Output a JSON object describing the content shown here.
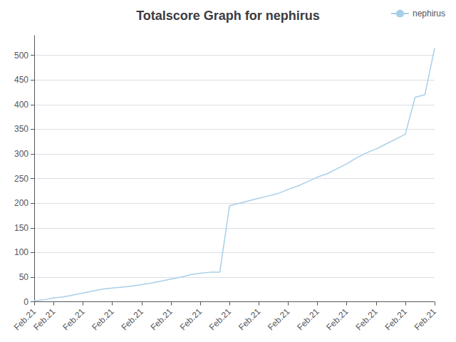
{
  "chart_data": {
    "type": "line",
    "title": "Totalscore Graph for nephirus",
    "x": [
      0,
      1,
      2,
      3,
      4,
      5,
      6,
      7,
      8,
      9,
      10,
      11,
      12,
      13,
      14,
      15,
      16,
      17,
      18,
      19,
      20,
      21,
      22,
      23,
      24,
      25,
      26,
      27,
      28,
      29,
      30,
      31,
      32,
      33,
      34,
      35,
      36,
      37,
      38,
      39,
      40,
      41
    ],
    "series": [
      {
        "name": "nephirus",
        "color": "#a8cfe8",
        "values": [
          2,
          4,
          8,
          10,
          14,
          18,
          22,
          26,
          28,
          30,
          32,
          35,
          38,
          42,
          46,
          50,
          55,
          58,
          60,
          60,
          195,
          200,
          205,
          210,
          215,
          220,
          228,
          235,
          244,
          253,
          260,
          270,
          280,
          292,
          302,
          310,
          320,
          330,
          340,
          415,
          420,
          515
        ]
      }
    ],
    "xlim": [
      0,
      41
    ],
    "xticks": [
      {
        "value": 0,
        "label": "Feb.21"
      },
      {
        "value": 2,
        "label": "Feb.21"
      },
      {
        "value": 5,
        "label": "Feb.21"
      },
      {
        "value": 8,
        "label": "Feb.21"
      },
      {
        "value": 11,
        "label": "Feb.21"
      },
      {
        "value": 14,
        "label": "Feb.21"
      },
      {
        "value": 17,
        "label": "Feb.21"
      },
      {
        "value": 20,
        "label": "Feb.21"
      },
      {
        "value": 23,
        "label": "Feb.21"
      },
      {
        "value": 26,
        "label": "Feb.21"
      },
      {
        "value": 29,
        "label": "Feb.21"
      },
      {
        "value": 32,
        "label": "Feb.21"
      },
      {
        "value": 35,
        "label": "Feb.21"
      },
      {
        "value": 38,
        "label": "Feb.21"
      },
      {
        "value": 41,
        "label": "Feb.21"
      }
    ],
    "ylim": [
      -5,
      540
    ],
    "yticks": [
      0,
      50,
      100,
      150,
      200,
      250,
      300,
      350,
      400,
      450,
      500
    ],
    "grid": true,
    "legend": "upper right"
  }
}
